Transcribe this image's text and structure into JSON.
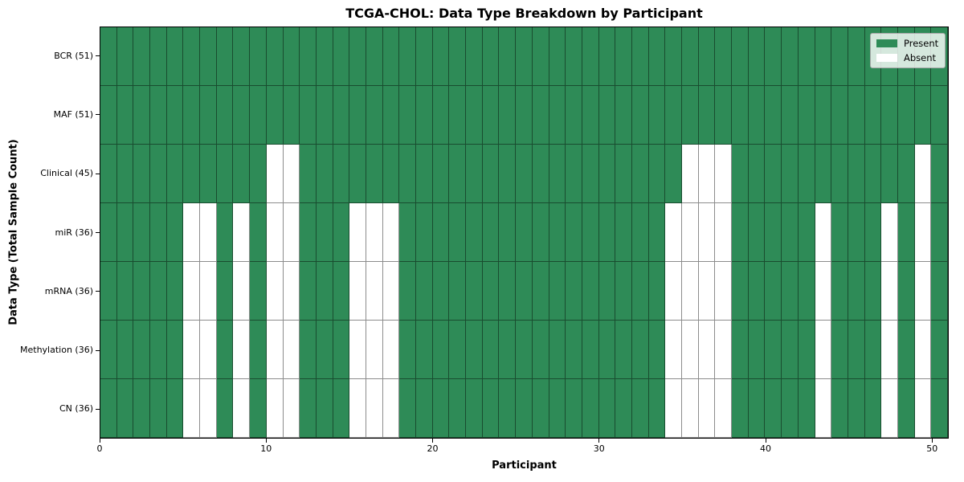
{
  "chart_data": {
    "type": "heatmap",
    "title": "TCGA-CHOL: Data Type Breakdown by Participant",
    "xlabel": "Participant",
    "ylabel": "Data Type (Total Sample Count)",
    "n_participants": 51,
    "x_range": [
      0,
      51
    ],
    "x_ticks": [
      0,
      10,
      20,
      30,
      40,
      50
    ],
    "grid": true,
    "legend_position": "upper right",
    "legend": [
      {
        "label": "Present",
        "color": "#2e8b57"
      },
      {
        "label": "Absent",
        "color": "#ffffff"
      }
    ],
    "colors": {
      "present": "#2e8b57",
      "absent": "#ffffff",
      "gridline": "rgba(0,0,0,0.45)",
      "border": "#000000"
    },
    "rows": [
      {
        "label": "BCR (51)",
        "total": 51,
        "absent_participants": []
      },
      {
        "label": "MAF (51)",
        "total": 51,
        "absent_participants": []
      },
      {
        "label": "Clinical (45)",
        "total": 45,
        "absent_participants": [
          10,
          11,
          35,
          36,
          37,
          49
        ]
      },
      {
        "label": "miR (36)",
        "total": 36,
        "absent_participants": [
          5,
          6,
          8,
          10,
          11,
          15,
          16,
          17,
          34,
          35,
          36,
          37,
          43,
          47,
          49
        ]
      },
      {
        "label": "mRNA (36)",
        "total": 36,
        "absent_participants": [
          5,
          6,
          8,
          10,
          11,
          15,
          16,
          17,
          34,
          35,
          36,
          37,
          43,
          47,
          49
        ]
      },
      {
        "label": "Methylation (36)",
        "total": 36,
        "absent_participants": [
          5,
          6,
          8,
          10,
          11,
          15,
          16,
          17,
          34,
          35,
          36,
          37,
          43,
          47,
          49
        ]
      },
      {
        "label": "CN (36)",
        "total": 36,
        "absent_participants": [
          5,
          6,
          8,
          10,
          11,
          15,
          16,
          17,
          34,
          35,
          36,
          37,
          43,
          47,
          49
        ]
      }
    ]
  }
}
